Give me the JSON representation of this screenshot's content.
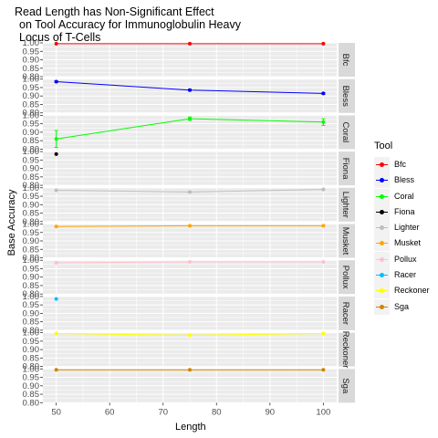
{
  "title_lines": [
    "Read Length has Non-Significant Effect",
    "on Tool Accuracy for Immunoglobulin Heavy",
    "Locus of T-Cells"
  ],
  "chart_data": {
    "type": "line",
    "facet": "rows",
    "xlabel": "Length",
    "ylabel": "Base Accuracy",
    "x_ticks": [
      50,
      60,
      70,
      80,
      90,
      100
    ],
    "xlim": [
      47.5,
      102.5
    ],
    "ylim": [
      0.8,
      1.0
    ],
    "y_ticks": [
      0.8,
      0.85,
      0.9,
      0.95,
      1.0
    ],
    "y_tick_labels": [
      "0.80",
      "0.85",
      "0.90",
      "0.95",
      "1.00"
    ],
    "legend_title": "Tool",
    "legend_position": "right",
    "series": [
      {
        "name": "Bfc",
        "color": "#ff0000",
        "x": [
          50,
          75,
          100
        ],
        "y": [
          0.995,
          0.995,
          0.995
        ],
        "err": [
          0,
          0,
          0
        ]
      },
      {
        "name": "Bless",
        "color": "#0000ff",
        "x": [
          50,
          75,
          100
        ],
        "y": [
          0.985,
          0.935,
          0.915
        ],
        "err": [
          0.005,
          0.005,
          0.005
        ]
      },
      {
        "name": "Coral",
        "color": "#00ff00",
        "x": [
          50,
          75,
          100
        ],
        "y": [
          0.86,
          0.98,
          0.96
        ],
        "err": [
          0.05,
          0.01,
          0.02
        ]
      },
      {
        "name": "Fiona",
        "color": "#000000",
        "x": [
          50
        ],
        "y": [
          0.985
        ],
        "err": [
          0
        ]
      },
      {
        "name": "Lighter",
        "color": "#bebebe",
        "x": [
          50,
          75,
          100
        ],
        "y": [
          0.985,
          0.975,
          0.99
        ],
        "err": [
          0,
          0.005,
          0
        ]
      },
      {
        "name": "Musket",
        "color": "#ffa500",
        "x": [
          50,
          75,
          100
        ],
        "y": [
          0.985,
          0.99,
          0.99
        ],
        "err": [
          0,
          0,
          0
        ]
      },
      {
        "name": "Pollux",
        "color": "#ffc0cb",
        "x": [
          50,
          75,
          100
        ],
        "y": [
          0.985,
          0.99,
          0.99
        ],
        "err": [
          0,
          0,
          0
        ]
      },
      {
        "name": "Racer",
        "color": "#00bfff",
        "x": [
          50
        ],
        "y": [
          0.985
        ],
        "err": [
          0
        ]
      },
      {
        "name": "Reckoner",
        "color": "#ffff00",
        "x": [
          50,
          75,
          100
        ],
        "y": [
          0.995,
          0.985,
          0.995
        ],
        "err": [
          0,
          0,
          0
        ]
      },
      {
        "name": "Sga",
        "color": "#cd8500",
        "x": [
          50,
          75,
          100
        ],
        "y": [
          0.995,
          0.995,
          0.995
        ],
        "err": [
          0,
          0,
          0
        ]
      }
    ],
    "colors": {
      "panel_bg": "#ebebeb",
      "strip_bg": "#d9d9d9",
      "grid": "#ffffff"
    }
  }
}
